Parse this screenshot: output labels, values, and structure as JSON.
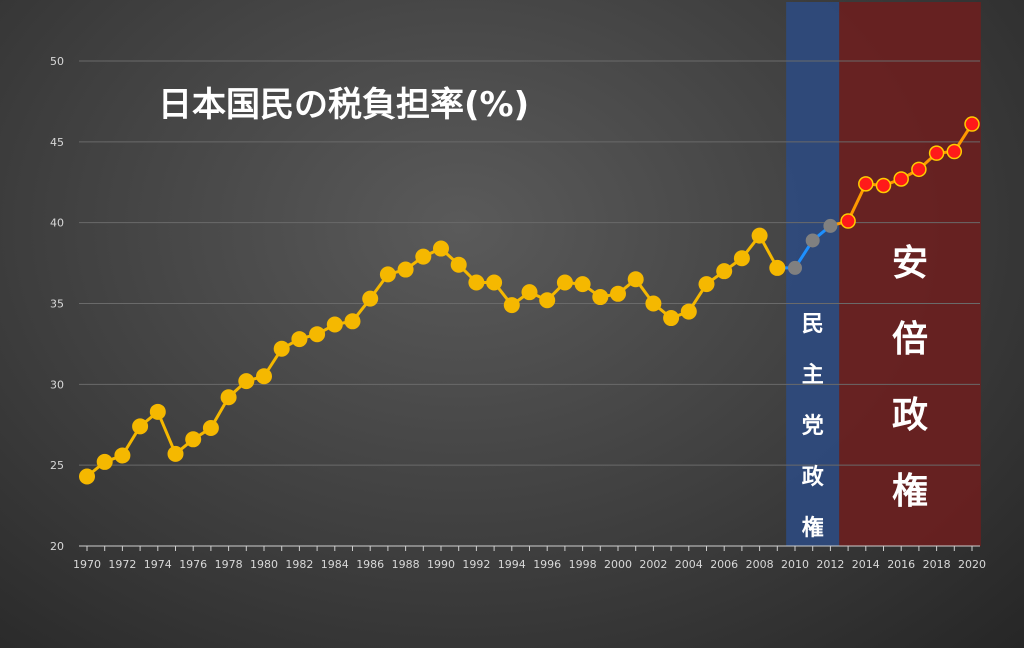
{
  "chart_data": {
    "type": "line",
    "title": "日本国民の税負担率(%)",
    "xlabel": "",
    "ylabel": "",
    "ylim": [
      20,
      50
    ],
    "yticks": [
      20,
      25,
      30,
      35,
      40,
      45,
      50
    ],
    "xlim": [
      1970,
      2020
    ],
    "xticks": [
      1970,
      1972,
      1974,
      1976,
      1978,
      1980,
      1982,
      1984,
      1986,
      1988,
      1990,
      1992,
      1994,
      1996,
      1998,
      2000,
      2002,
      2004,
      2006,
      2008,
      2010,
      2012,
      2014,
      2016,
      2018,
      2020
    ],
    "grid": true,
    "series": [
      {
        "color": "#f5b800",
        "marker_color": "#f5b800",
        "x": [
          1970,
          1971,
          1972,
          1973,
          1974,
          1975,
          1976,
          1977,
          1978,
          1979,
          1980,
          1981,
          1982,
          1983,
          1984,
          1985,
          1986,
          1987,
          1988,
          1989,
          1990,
          1991,
          1992,
          1993,
          1994,
          1995,
          1996,
          1997,
          1998,
          1999,
          2000,
          2001,
          2002,
          2003,
          2004,
          2005,
          2006,
          2007,
          2008,
          2009
        ],
        "y": [
          24.3,
          25.2,
          25.6,
          27.4,
          28.3,
          25.7,
          26.6,
          27.3,
          29.2,
          30.2,
          30.5,
          32.2,
          32.8,
          33.1,
          33.7,
          33.9,
          35.3,
          36.8,
          37.1,
          37.9,
          38.4,
          37.4,
          36.3,
          36.3,
          34.9,
          35.7,
          35.2,
          36.3,
          36.2,
          35.4,
          35.6,
          36.5,
          35.0,
          34.1,
          34.5,
          36.2,
          37.0,
          37.8,
          39.2,
          37.2
        ]
      },
      {
        "color": "#1e90ff",
        "marker_color": "#808080",
        "x": [
          2009,
          2010,
          2011,
          2012
        ],
        "y": [
          37.2,
          37.2,
          38.9,
          39.8
        ]
      },
      {
        "color": "#ff9900",
        "marker_color": "#ff1a1a",
        "x": [
          2012,
          2013,
          2014,
          2015,
          2016,
          2017,
          2018,
          2019,
          2020
        ],
        "y": [
          39.8,
          40.1,
          42.4,
          42.3,
          42.7,
          43.3,
          44.3,
          44.4,
          46.1
        ]
      }
    ],
    "bands": [
      {
        "label": [
          "民",
          "主",
          "党",
          "政",
          "権"
        ],
        "x_start": 2009.5,
        "x_end": 2012.5,
        "color": "#2e4a80"
      },
      {
        "label": [
          "安",
          "倍",
          "政",
          "権"
        ],
        "x_start": 2012.5,
        "x_end": 2020.5,
        "color": "#6b1f1f"
      }
    ]
  }
}
